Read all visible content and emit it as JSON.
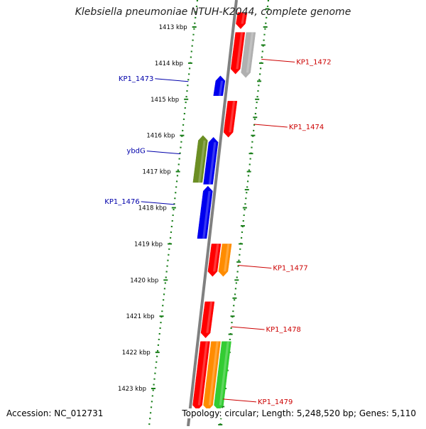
{
  "title": "Klebsiella pneumoniae NTUH-K2044, complete genome",
  "footer": {
    "accession": "Accession: NC_012731",
    "summary": "Topology: circular; Length: 5,248,520 bp; Genes: 5,110"
  },
  "ruler": {
    "unit_suffix": "kbp",
    "ticks": [
      "1413 kbp",
      "1414 kbp",
      "1415 kbp",
      "1416 kbp",
      "1417 kbp",
      "1418 kbp",
      "1419 kbp",
      "1420 kbp",
      "1421 kbp",
      "1422 kbp",
      "1423 kbp"
    ]
  },
  "colors": {
    "axis": "#808080",
    "strand_dots": "#1a7f1a",
    "red": "#ff0000",
    "blue": "#0000ee",
    "olive": "#6b8e23",
    "orange": "#ff8c00",
    "gray": "#b0b0b0",
    "green": "#33cc33",
    "label_red": "#cc0000",
    "label_blue": "#0000aa"
  },
  "genes": [
    {
      "id": "g-top-a",
      "color": "red",
      "track": 1,
      "start": 1412.6,
      "end": 1413.05,
      "dir": "down"
    },
    {
      "id": "g-kp1472",
      "color": "red",
      "track": 1,
      "start": 1413.15,
      "end": 1414.3,
      "dir": "down"
    },
    {
      "id": "g-kp1472-gray",
      "color": "gray",
      "track": 2,
      "start": 1413.15,
      "end": 1414.4,
      "dir": "down"
    },
    {
      "id": "g-kp1473",
      "color": "blue",
      "track": -1,
      "start": 1414.35,
      "end": 1414.9,
      "dir": "up"
    },
    {
      "id": "g-kp1474",
      "color": "red",
      "track": 1,
      "start": 1415.05,
      "end": 1416.05,
      "dir": "down"
    },
    {
      "id": "g-ybdG",
      "color": "olive",
      "track": -2,
      "start": 1416.0,
      "end": 1417.3,
      "dir": "up"
    },
    {
      "id": "g-blue-2",
      "color": "blue",
      "track": -1,
      "start": 1416.05,
      "end": 1417.35,
      "dir": "up"
    },
    {
      "id": "g-kp1476",
      "color": "blue",
      "track": -1,
      "start": 1417.4,
      "end": 1418.85,
      "dir": "up"
    },
    {
      "id": "g-kp1477-red",
      "color": "red",
      "track": 1,
      "start": 1419.0,
      "end": 1419.9,
      "dir": "down"
    },
    {
      "id": "g-kp1477",
      "color": "orange",
      "track": 2,
      "start": 1419.0,
      "end": 1419.9,
      "dir": "down"
    },
    {
      "id": "g-kp1478",
      "color": "red",
      "track": 1,
      "start": 1420.6,
      "end": 1421.6,
      "dir": "down"
    },
    {
      "id": "g-bot-red",
      "color": "red",
      "track": 1,
      "start": 1421.7,
      "end": 1423.6,
      "dir": "down"
    },
    {
      "id": "g-bot-orange",
      "color": "orange",
      "track": 2,
      "start": 1421.7,
      "end": 1423.6,
      "dir": "down"
    },
    {
      "id": "g-bot-green",
      "color": "green",
      "track": 3,
      "start": 1421.7,
      "end": 1423.6,
      "dir": "down"
    }
  ],
  "labels": [
    {
      "id": "KP1_1472",
      "text": "KP1_1472",
      "side": "right",
      "color": "label_red",
      "at": 1413.95
    },
    {
      "id": "KP1_1473",
      "text": "KP1_1473",
      "side": "left",
      "color": "label_blue",
      "at": 1414.45
    },
    {
      "id": "KP1_1474",
      "text": "KP1_1474",
      "side": "right",
      "color": "label_red",
      "at": 1415.75
    },
    {
      "id": "ybdG",
      "text": "ybdG",
      "side": "left",
      "color": "label_blue",
      "at": 1416.45
    },
    {
      "id": "KP1_1476",
      "text": "KP1_1476",
      "side": "left",
      "color": "label_blue",
      "at": 1417.85
    },
    {
      "id": "KP1_1477",
      "text": "KP1_1477",
      "side": "right",
      "color": "label_red",
      "at": 1419.65
    },
    {
      "id": "KP1_1478",
      "text": "KP1_1478",
      "side": "right",
      "color": "label_red",
      "at": 1421.35
    },
    {
      "id": "KP1_1479",
      "text": "KP1_1479",
      "side": "right",
      "color": "label_red",
      "at": 1423.35
    }
  ]
}
